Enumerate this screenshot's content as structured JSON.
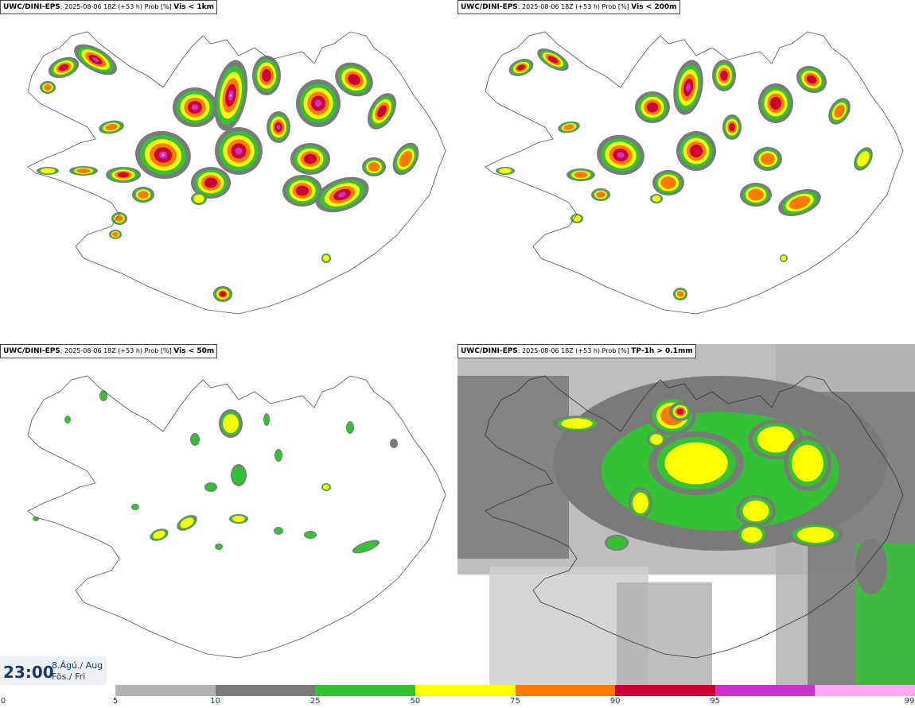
{
  "panels": [
    {
      "model": "UWC/DINI-EPS",
      "run": ": 2025-08-06 18Z (+53 h) Prob [%]",
      "product": "Vis < 1km"
    },
    {
      "model": "UWC/DINI-EPS",
      "run": ": 2025-08-06 18Z (+53 h) Prob [%]",
      "product": "Vis < 200m"
    },
    {
      "model": "UWC/DINI-EPS",
      "run": ": 2025-08-06 18Z (+53 h) Prob [%]",
      "product": "Vis < 50m"
    },
    {
      "model": "UWC/DINI-EPS",
      "run": ": 2025-08-06 18Z (+53 h) Prob [%]",
      "product": "TP-1h > 0.1mm"
    }
  ],
  "time": {
    "clock": "23:00",
    "date_line1": "8.Ágú./ Aug",
    "date_line2": "Fös./ Fri"
  },
  "colorbar": {
    "ticks": [
      "0",
      "5",
      "10",
      "25",
      "50",
      "75",
      "90",
      "95",
      "99"
    ],
    "colors": [
      "#b3b3b3",
      "#7a7a7a",
      "#33c233",
      "#ffff00",
      "#ff7a00",
      "#cc0033",
      "#cc33cc",
      "#ffaaf0"
    ]
  },
  "palette": {
    "gray_light": "#b3b3b3",
    "gray_dark": "#7a7a7a",
    "green": "#33c233",
    "yellow": "#ffff00",
    "orange": "#ff7a00",
    "red": "#cc0033",
    "magenta": "#cc33cc",
    "pink": "#f2a0ee",
    "outline": "#555555"
  }
}
